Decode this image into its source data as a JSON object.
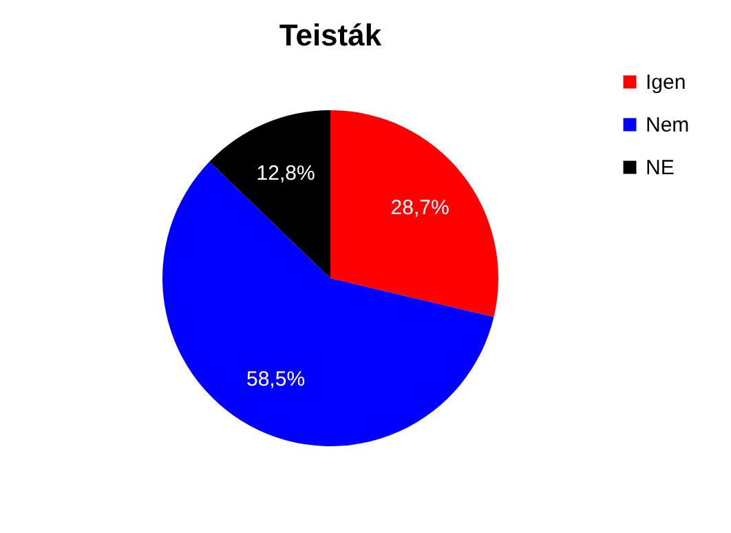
{
  "chart_data": {
    "type": "pie",
    "title": "Teisták",
    "categories": [
      "Igen",
      "Nem",
      "NE"
    ],
    "values": [
      28.7,
      58.5,
      12.8
    ],
    "colors": [
      "#ff0000",
      "#0000ff",
      "#000000"
    ],
    "value_labels": [
      "28,7%",
      "58,5%",
      "12,8%"
    ],
    "legend": "right"
  }
}
